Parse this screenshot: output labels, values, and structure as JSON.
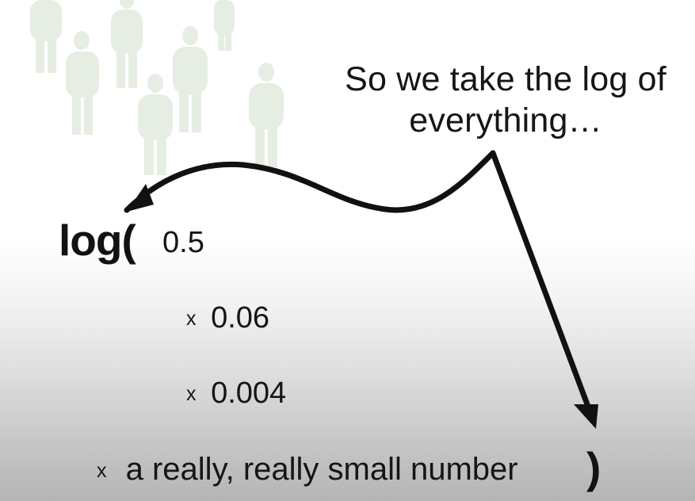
{
  "callout": {
    "line1": "So we take the log of",
    "line2": "everything…"
  },
  "expression": {
    "function_name": "log(",
    "closing_paren": ")",
    "multiply_symbol": "x",
    "terms": [
      "0.5",
      "0.06",
      "0.004",
      "a really, really small number"
    ]
  },
  "colors": {
    "text": "#151515",
    "arrow": "#111111",
    "crowd_silhouettes": "#e3ebe0"
  }
}
